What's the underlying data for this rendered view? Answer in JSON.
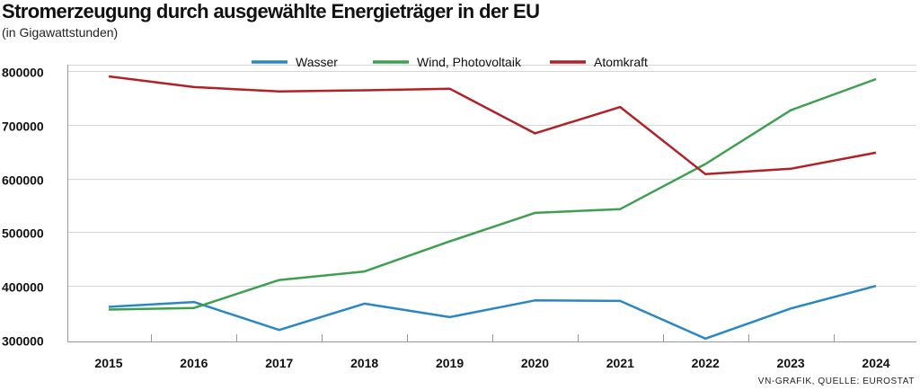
{
  "chart_data": {
    "type": "line",
    "title": "Stromerzeugung durch ausgewählte Energieträger in der EU",
    "subtitle": "(in Gigawattstunden)",
    "source": "VN-GRAFIK, QUELLE: EUROSTAT",
    "x": [
      "2015",
      "2016",
      "2017",
      "2018",
      "2019",
      "2020",
      "2021",
      "2022",
      "2023",
      "2024"
    ],
    "y_ticks": [
      {
        "value": 800000,
        "label": "800000"
      },
      {
        "value": 700000,
        "label": "700000"
      },
      {
        "value": 600000,
        "label": "600000"
      },
      {
        "value": 500000,
        "label": "500000"
      },
      {
        "value": 400000,
        "label": "400000"
      },
      {
        "value": 300000,
        "label": "300000"
      }
    ],
    "ylim": [
      285000,
      805000
    ],
    "legend_position": "top-center",
    "series": [
      {
        "name": "Wasser",
        "color": "#2a87c3",
        "values": [
          361000,
          370000,
          318000,
          367000,
          342000,
          373000,
          372000,
          302000,
          358000,
          400000
        ]
      },
      {
        "name": "Wind, Photovoltaik",
        "color": "#3f9f50",
        "values": [
          356000,
          359000,
          411000,
          427000,
          483000,
          536000,
          543000,
          627000,
          727000,
          785000
        ]
      },
      {
        "name": "Atomkraft",
        "color": "#b02227",
        "values": [
          790000,
          770000,
          762000,
          764000,
          767000,
          684000,
          733000,
          608000,
          618000,
          648000
        ]
      }
    ]
  }
}
